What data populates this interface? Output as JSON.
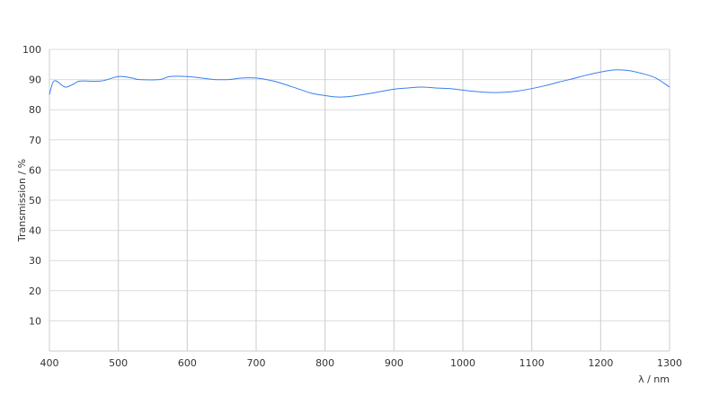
{
  "chart_data": {
    "type": "line",
    "title": "",
    "xlabel": "λ / nm",
    "ylabel": "Transmission / %",
    "xlim": [
      400,
      1300
    ],
    "ylim": [
      0,
      100
    ],
    "xticks": [
      400,
      500,
      600,
      700,
      800,
      900,
      1000,
      1100,
      1200,
      1300
    ],
    "yticks": [
      10,
      20,
      30,
      40,
      50,
      60,
      70,
      80,
      90,
      100
    ],
    "grid": true,
    "line_color": "#3a7ff0",
    "series": [
      {
        "x": [
          400,
          405,
          410,
          420,
          425,
          435,
          445,
          475,
          500,
          520,
          530,
          560,
          575,
          600,
          620,
          640,
          660,
          680,
          700,
          725,
          740,
          760,
          780,
          800,
          820,
          840,
          860,
          880,
          900,
          920,
          940,
          960,
          980,
          1000,
          1020,
          1040,
          1060,
          1080,
          1100,
          1120,
          1140,
          1160,
          1180,
          1200,
          1220,
          1240,
          1260,
          1280,
          1300
        ],
        "y": [
          85,
          89,
          89.5,
          87.8,
          87.5,
          88.5,
          89.5,
          89.5,
          91,
          90.5,
          90,
          90,
          91,
          91,
          90.5,
          90,
          90,
          90.5,
          90.5,
          89.5,
          88.5,
          87,
          85.5,
          84.7,
          84.2,
          84.5,
          85.2,
          86,
          86.8,
          87.2,
          87.5,
          87.2,
          87,
          86.5,
          86,
          85.7,
          85.8,
          86.2,
          87,
          88,
          89.2,
          90.3,
          91.5,
          92.5,
          93.2,
          93,
          92,
          90.5,
          87.5
        ]
      }
    ]
  }
}
